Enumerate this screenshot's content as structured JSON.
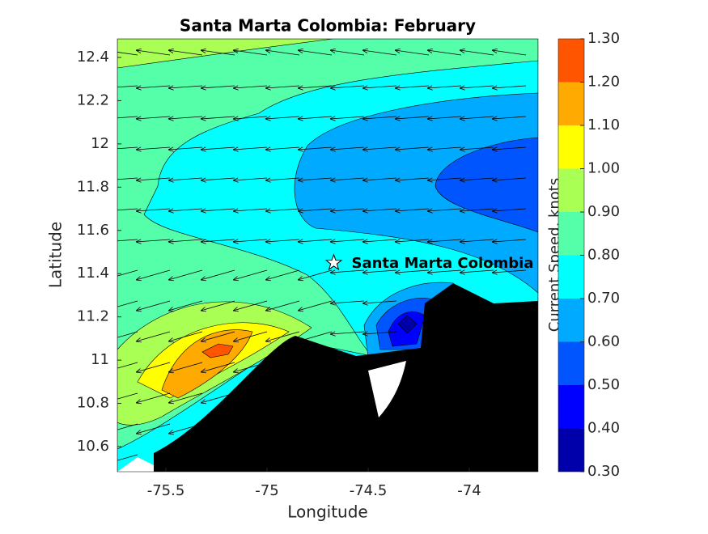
{
  "chart_data": {
    "type": "contour",
    "title": "Santa Marta Colombia: February",
    "x_label": "Longitude",
    "y_label": "Latitude",
    "xlim": [
      -75.74,
      -73.66
    ],
    "ylim": [
      10.484,
      12.486
    ],
    "xticks": [
      -75.5,
      -75,
      -74.5,
      -74
    ],
    "yticks": [
      10.6,
      10.8,
      11,
      11.2,
      11.4,
      11.6,
      11.8,
      12,
      12.2,
      12.4
    ],
    "annotation": {
      "text": "Santa Marta Colombia",
      "x": -74.67,
      "y": 11.45
    },
    "colorbar": {
      "label": "Current Speed, knots",
      "ticks": [
        {
          "value": 0.3,
          "label": "0.30"
        },
        {
          "value": 0.4,
          "label": "0.40"
        },
        {
          "value": 0.5,
          "label": "0.50"
        },
        {
          "value": 0.6,
          "label": "0.60"
        },
        {
          "value": 0.7,
          "label": "0.70"
        },
        {
          "value": 0.8,
          "label": "0.80"
        },
        {
          "value": 0.9,
          "label": "0.90"
        },
        {
          "value": 1.0,
          "label": "1.00"
        },
        {
          "value": 1.1,
          "label": "1.10"
        },
        {
          "value": 1.2,
          "label": "1.20"
        },
        {
          "value": 1.3,
          "label": "1.30"
        }
      ],
      "colors": [
        "#0000aa",
        "#0000ff",
        "#0055ff",
        "#00aaff",
        "#00ffff",
        "#55ffaa",
        "#aaff55",
        "#ffff00",
        "#ffaa00",
        "#ff5500"
      ]
    }
  }
}
